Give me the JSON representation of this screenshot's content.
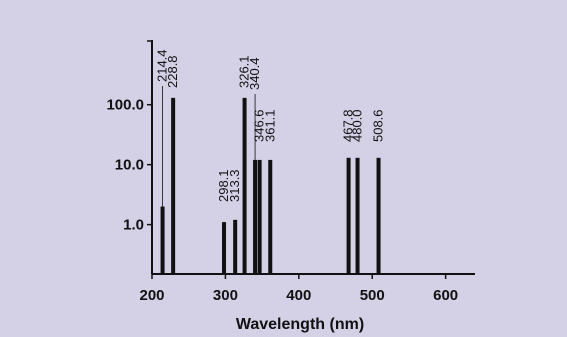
{
  "chart_data": {
    "type": "bar",
    "title": "",
    "xlabel": "Wavelength (nm)",
    "ylabel": "",
    "xlim": [
      200,
      640
    ],
    "ylim": [
      0.15,
      1200
    ],
    "y_scale": "log",
    "x_ticks": [
      200,
      300,
      400,
      500,
      600
    ],
    "x_tick_labels": [
      "200",
      "300",
      "400",
      "500",
      "600"
    ],
    "y_ticks": [
      1,
      10,
      100
    ],
    "y_tick_labels": [
      "1.0",
      "10.0",
      "100.0"
    ],
    "grid": false,
    "peaks": [
      {
        "label": "214.4",
        "x": 214.4,
        "value": 2.0
      },
      {
        "label": "228.8",
        "x": 228.8,
        "value": 130
      },
      {
        "label": "298.1",
        "x": 298.1,
        "value": 1.1
      },
      {
        "label": "313.3",
        "x": 313.3,
        "value": 1.2
      },
      {
        "label": "326.1",
        "x": 326.1,
        "value": 130
      },
      {
        "label": "340.4",
        "x": 340.4,
        "value": 12
      },
      {
        "label": "346.6",
        "x": 346.6,
        "value": 12
      },
      {
        "label": "361.1",
        "x": 361.1,
        "value": 12
      },
      {
        "label": "467.8",
        "x": 467.8,
        "value": 13
      },
      {
        "label": "480.0",
        "x": 480.0,
        "value": 13
      },
      {
        "label": "508.6",
        "x": 508.6,
        "value": 13
      }
    ]
  },
  "colors": {
    "background": "#d4d0e6",
    "ink": "#111111"
  }
}
